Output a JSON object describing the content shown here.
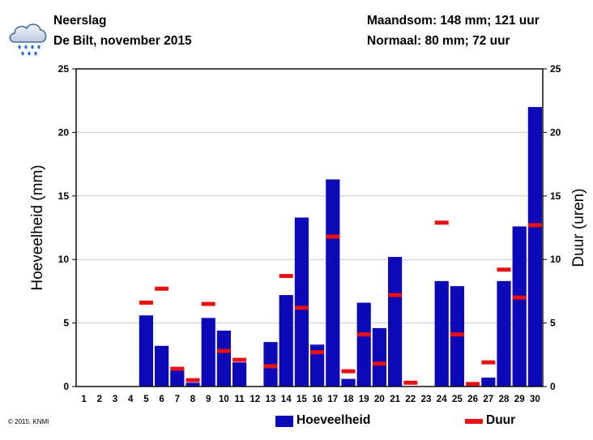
{
  "header": {
    "title": "Neerslag",
    "subtitle": "De Bilt, november 2015",
    "monthly_sum": "Maandsom: 148 mm; 121 uur",
    "normal": "Normaal: 80 mm; 72 uur",
    "icon": "rain-cloud-icon"
  },
  "copyright": "© 2015, KNMI",
  "colors": {
    "bars": "#0c0ab8",
    "duration": "#e81010",
    "frame": "#000000"
  },
  "chart_data": {
    "type": "bar",
    "categories": [
      "1",
      "2",
      "3",
      "4",
      "5",
      "6",
      "7",
      "8",
      "9",
      "10",
      "11",
      "12",
      "13",
      "14",
      "15",
      "16",
      "17",
      "18",
      "19",
      "20",
      "21",
      "22",
      "23",
      "24",
      "25",
      "26",
      "27",
      "28",
      "29",
      "30"
    ],
    "series": [
      {
        "name": "Hoeveelheid",
        "axis": "left",
        "kind": "bar",
        "values": [
          0,
          0,
          0,
          0,
          5.6,
          3.2,
          1.3,
          0.3,
          5.4,
          4.4,
          1.9,
          0,
          3.5,
          7.2,
          13.3,
          3.3,
          16.3,
          0.6,
          6.6,
          4.6,
          10.2,
          0,
          0,
          8.3,
          7.9,
          0,
          0.7,
          8.3,
          12.6,
          22.0
        ]
      },
      {
        "name": "Duur",
        "axis": "right",
        "kind": "marker",
        "values": [
          0,
          0,
          0,
          0,
          6.6,
          7.7,
          1.4,
          0.5,
          6.5,
          2.8,
          2.1,
          0,
          1.6,
          8.7,
          6.2,
          2.7,
          11.8,
          1.2,
          4.1,
          1.8,
          7.2,
          0.3,
          0,
          12.9,
          4.1,
          0.2,
          1.9,
          9.2,
          7.0,
          12.7
        ]
      }
    ],
    "ylabel": "Hoeveelheid (mm)",
    "y2label": "Duur (uren)",
    "ylim": [
      0,
      25
    ],
    "y2lim": [
      0,
      25
    ],
    "yticks": [
      0,
      5,
      10,
      15,
      20,
      25
    ],
    "grid": true,
    "legend": {
      "position": "bottom",
      "items": [
        "Hoeveelheid",
        "Duur"
      ]
    }
  }
}
